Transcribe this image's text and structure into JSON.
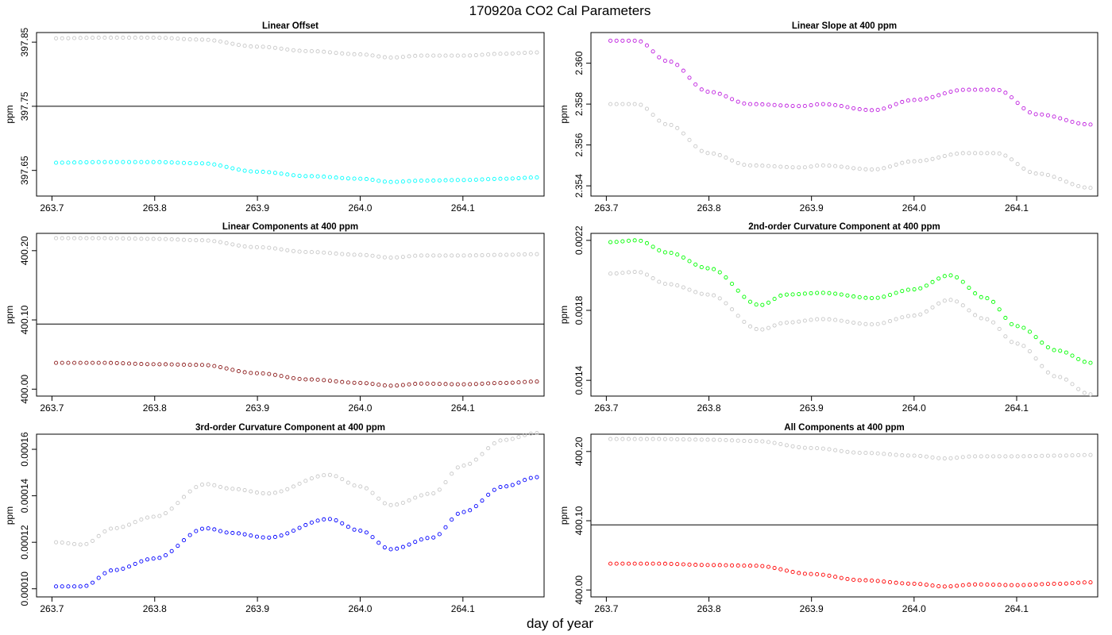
{
  "figure": {
    "title": "170920a   CO2 Cal Parameters",
    "xlabel": "day of year"
  },
  "colors": {
    "reference": "#c8c8c8",
    "axis": "#000000"
  },
  "chart_data": [
    {
      "type": "scatter",
      "title": "Linear Offset",
      "ylabel": "ppm",
      "xlim": [
        263.685,
        264.179
      ],
      "ylim": [
        397.61,
        397.865
      ],
      "x_ticks": [
        "263.7",
        "263.8",
        "263.9",
        "264.0",
        "264.1"
      ],
      "y_ticks": [
        "397.65",
        "397.75",
        "397.85"
      ],
      "hline": 397.75,
      "series": [
        {
          "color": "#c8c8c8",
          "marker": "open-circle",
          "x": [
            263.704,
            263.75,
            263.8,
            263.845,
            263.9,
            263.95,
            264.0,
            264.03,
            264.06,
            264.1,
            264.14,
            264.172
          ],
          "y": [
            397.856,
            397.857,
            397.857,
            397.854,
            397.843,
            397.836,
            397.831,
            397.826,
            397.829,
            397.829,
            397.832,
            397.834
          ]
        },
        {
          "color": "#00ffff",
          "marker": "open-circle",
          "x": [
            263.704,
            263.75,
            263.8,
            263.845,
            263.9,
            263.95,
            264.0,
            264.03,
            264.06,
            264.1,
            264.14,
            264.172
          ],
          "y": [
            397.662,
            397.663,
            397.663,
            397.661,
            397.648,
            397.641,
            397.637,
            397.632,
            397.634,
            397.635,
            397.637,
            397.639
          ]
        }
      ]
    },
    {
      "type": "scatter",
      "title": "Linear Slope at 400 ppm",
      "ylabel": "ppm",
      "xlim": [
        263.685,
        264.179
      ],
      "ylim": [
        2.3535,
        2.3615
      ],
      "x_ticks": [
        "263.7",
        "263.8",
        "263.9",
        "264.0",
        "264.1"
      ],
      "y_ticks": [
        "2.354",
        "2.356",
        "2.358",
        "2.360"
      ],
      "series": [
        {
          "color": "#c8c8c8",
          "marker": "open-circle",
          "x": [
            263.704,
            263.73,
            263.76,
            263.8,
            263.84,
            263.89,
            263.91,
            263.96,
            264.0,
            264.05,
            264.08,
            264.12,
            264.172
          ],
          "y": [
            2.358,
            2.358,
            2.357,
            2.3556,
            2.355,
            2.3549,
            2.355,
            2.3548,
            2.3552,
            2.3556,
            2.3556,
            2.3546,
            2.3539
          ]
        },
        {
          "color": "#bf1fdf",
          "marker": "open-circle",
          "x": [
            263.704,
            263.73,
            263.76,
            263.8,
            263.84,
            263.89,
            263.91,
            263.96,
            264.0,
            264.05,
            264.08,
            264.12,
            264.172
          ],
          "y": [
            2.3611,
            2.3611,
            2.3601,
            2.3586,
            2.358,
            2.3579,
            2.358,
            2.3577,
            2.3582,
            2.3587,
            2.3587,
            2.3575,
            2.357
          ]
        }
      ]
    },
    {
      "type": "scatter",
      "title": "Linear Components at 400 ppm",
      "ylabel": "ppm",
      "xlim": [
        263.685,
        264.179
      ],
      "ylim": [
        399.99,
        400.225
      ],
      "x_ticks": [
        "263.7",
        "263.8",
        "263.9",
        "264.0",
        "264.1"
      ],
      "y_ticks": [
        "400.00",
        "400.10",
        "400.20"
      ],
      "hline": 400.094,
      "series": [
        {
          "color": "#c8c8c8",
          "marker": "open-circle",
          "x": [
            263.704,
            263.75,
            263.8,
            263.845,
            263.9,
            263.95,
            264.0,
            264.03,
            264.06,
            264.1,
            264.14,
            264.172
          ],
          "y": [
            400.218,
            400.218,
            400.217,
            400.215,
            400.205,
            400.198,
            400.194,
            400.19,
            400.193,
            400.193,
            400.194,
            400.195
          ]
        },
        {
          "color": "#8b1a1a",
          "marker": "open-circle",
          "x": [
            263.704,
            263.75,
            263.8,
            263.845,
            263.9,
            263.95,
            264.0,
            264.03,
            264.06,
            264.1,
            264.14,
            264.172
          ],
          "y": [
            400.038,
            400.038,
            400.036,
            400.035,
            400.023,
            400.014,
            400.009,
            400.005,
            400.008,
            400.007,
            400.009,
            400.011
          ]
        }
      ]
    },
    {
      "type": "scatter",
      "title": "2nd-order Curvature Component at 400 ppm",
      "ylabel": "ppm",
      "xlim": [
        263.685,
        264.179
      ],
      "ylim": [
        0.00131,
        0.00224
      ],
      "x_ticks": [
        "263.7",
        "263.8",
        "263.9",
        "264.0",
        "264.1"
      ],
      "y_ticks": [
        "0.0014",
        "0.0018",
        "0.0022"
      ],
      "series": [
        {
          "color": "#c8c8c8",
          "marker": "open-circle",
          "x": [
            263.704,
            263.73,
            263.76,
            263.8,
            263.85,
            263.875,
            263.91,
            263.96,
            264.0,
            264.035,
            264.07,
            264.1,
            264.14,
            264.172
          ],
          "y": [
            0.00201,
            0.00202,
            0.00195,
            0.00189,
            0.00169,
            0.00173,
            0.00175,
            0.00172,
            0.00177,
            0.00186,
            0.00175,
            0.00161,
            0.00142,
            0.00132
          ]
        },
        {
          "color": "#00ff00",
          "marker": "open-circle",
          "x": [
            263.704,
            263.73,
            263.76,
            263.8,
            263.85,
            263.875,
            263.91,
            263.96,
            264.0,
            264.035,
            264.07,
            264.1,
            264.14,
            264.172
          ],
          "y": [
            0.00219,
            0.0022,
            0.00213,
            0.00204,
            0.00183,
            0.00189,
            0.0019,
            0.00187,
            0.00192,
            0.002,
            0.00187,
            0.00171,
            0.00157,
            0.0015
          ]
        }
      ]
    },
    {
      "type": "scatter",
      "title": "3rd-order Curvature Component at 400 ppm",
      "ylabel": "ppm",
      "xlim": [
        263.685,
        264.179
      ],
      "ylim": [
        9.65e-05,
        0.0001665
      ],
      "x_ticks": [
        "263.7",
        "263.8",
        "263.9",
        "264.0",
        "264.1"
      ],
      "y_ticks": [
        "0.00010",
        "0.00012",
        "0.00014",
        "0.00016"
      ],
      "series": [
        {
          "color": "#c8c8c8",
          "marker": "open-circle",
          "x": [
            263.704,
            263.73,
            263.76,
            263.8,
            263.85,
            263.875,
            263.91,
            263.97,
            264.0,
            264.03,
            264.07,
            264.1,
            264.14,
            264.172
          ],
          "y": [
            0.00012,
            0.000119,
            0.000126,
            0.000131,
            0.000145,
            0.000143,
            0.000141,
            0.000149,
            0.000144,
            0.000136,
            0.000141,
            0.000153,
            0.000164,
            0.000167
          ]
        },
        {
          "color": "#0000ff",
          "marker": "open-circle",
          "x": [
            263.704,
            263.73,
            263.76,
            263.8,
            263.85,
            263.875,
            263.91,
            263.97,
            264.0,
            264.03,
            264.07,
            264.1,
            264.14,
            264.172
          ],
          "y": [
            0.000101,
            0.000101,
            0.000108,
            0.000113,
            0.000126,
            0.000124,
            0.000122,
            0.00013,
            0.000125,
            0.000117,
            0.000122,
            0.000133,
            0.000144,
            0.000148
          ]
        }
      ]
    },
    {
      "type": "scatter",
      "title": "All Components at 400 ppm",
      "ylabel": "ppm",
      "xlim": [
        263.685,
        264.179
      ],
      "ylim": [
        399.99,
        400.225
      ],
      "x_ticks": [
        "263.7",
        "263.8",
        "263.9",
        "264.0",
        "264.1"
      ],
      "y_ticks": [
        "400.00",
        "400.10",
        "400.20"
      ],
      "hline": 400.094,
      "series": [
        {
          "color": "#c8c8c8",
          "marker": "open-circle",
          "x": [
            263.704,
            263.75,
            263.8,
            263.845,
            263.9,
            263.95,
            264.0,
            264.03,
            264.06,
            264.1,
            264.14,
            264.172
          ],
          "y": [
            400.218,
            400.218,
            400.217,
            400.215,
            400.205,
            400.198,
            400.194,
            400.19,
            400.193,
            400.193,
            400.194,
            400.195
          ]
        },
        {
          "color": "#ff0000",
          "marker": "open-circle",
          "x": [
            263.704,
            263.75,
            263.8,
            263.845,
            263.9,
            263.95,
            264.0,
            264.03,
            264.06,
            264.1,
            264.14,
            264.172
          ],
          "y": [
            400.038,
            400.038,
            400.036,
            400.035,
            400.023,
            400.014,
            400.009,
            400.005,
            400.008,
            400.007,
            400.009,
            400.011
          ]
        }
      ]
    }
  ]
}
